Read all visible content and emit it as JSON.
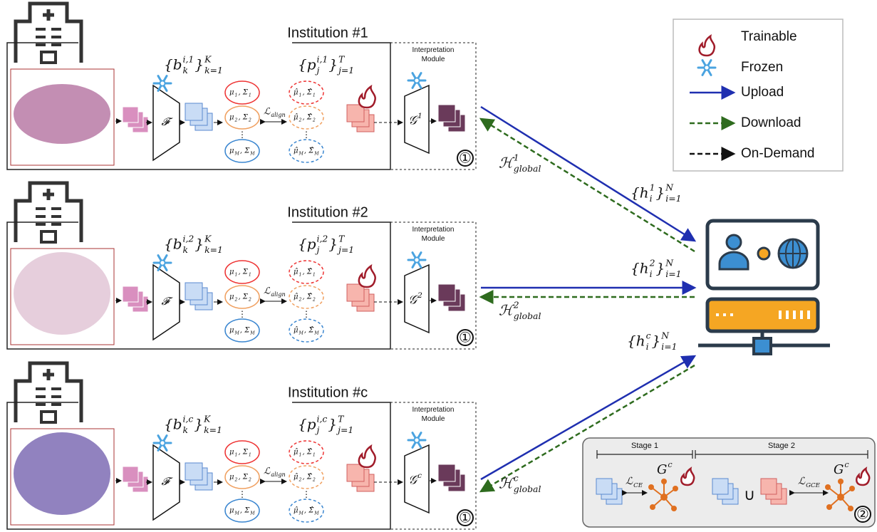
{
  "legend": {
    "items": [
      "Trainable",
      "Frozen",
      "Upload",
      "Download",
      "On-Demand"
    ]
  },
  "module": "Interpretation Module",
  "encoder": "𝓕",
  "align": {
    "main": "ℒ",
    "sub": "align"
  },
  "vdots": "⋮",
  "badge": "①",
  "gaussians": [
    {
      "main": "μ",
      "sub": "1",
      "tail": ", Σ",
      "sub2": "1"
    },
    {
      "main": "μ",
      "sub": "2",
      "tail": ", Σ",
      "sub2": "2"
    },
    {
      "main": "μ",
      "sub": "M",
      "tail": ", Σ",
      "sub2": "M"
    }
  ],
  "gaussians_hat": [
    {
      "main": "μ̂",
      "sub": "1",
      "tail": ", Σ̂",
      "sub2": "1"
    },
    {
      "main": "μ̂",
      "sub": "2",
      "tail": ", Σ̂",
      "sub2": "2"
    },
    {
      "main": "μ̂",
      "sub": "M",
      "tail": ", Σ̂",
      "sub2": "M"
    }
  ],
  "institutions": [
    {
      "title": "Institution #1",
      "interpreter": {
        "main": "𝒢",
        "sup": "1"
      },
      "tokens": {
        "main": "{b",
        "sup": "i,1",
        "sub": "k",
        "tail": "}",
        "sup2": "K",
        "sub2": "k=1"
      },
      "prototypes": {
        "main": "{p",
        "sup": "i,1",
        "sub": "j",
        "tail": "}",
        "sup2": "T",
        "sub2": "j=1"
      },
      "upload": {
        "main": "{h",
        "sup": "1",
        "sub": "i",
        "tail": "}",
        "sup2": "N",
        "sub2": "i=1"
      },
      "download": {
        "main": "ℋ",
        "sup": "1",
        "sub": "global"
      }
    },
    {
      "title": "Institution #2",
      "interpreter": {
        "main": "𝒢",
        "sup": "2"
      },
      "tokens": {
        "main": "{b",
        "sup": "i,2",
        "sub": "k",
        "tail": "}",
        "sup2": "K",
        "sub2": "k=1"
      },
      "prototypes": {
        "main": "{p",
        "sup": "i,2",
        "sub": "j",
        "tail": "}",
        "sup2": "T",
        "sub2": "j=1"
      },
      "upload": {
        "main": "{h",
        "sup": "2",
        "sub": "i",
        "tail": "}",
        "sup2": "N",
        "sub2": "i=1"
      },
      "download": {
        "main": "ℋ",
        "sup": "2",
        "sub": "global"
      }
    },
    {
      "title": "Institution #c",
      "interpreter": {
        "main": "𝒢",
        "sup": "c"
      },
      "tokens": {
        "main": "{b",
        "sup": "i,c",
        "sub": "k",
        "tail": "}",
        "sup2": "K",
        "sub2": "k=1"
      },
      "prototypes": {
        "main": "{p",
        "sup": "i,c",
        "sub": "j",
        "tail": "}",
        "sup2": "T",
        "sub2": "j=1"
      },
      "upload": {
        "main": "{h",
        "sup": "c",
        "sub": "i",
        "tail": "}",
        "sup2": "N",
        "sub2": "i=1"
      },
      "download": {
        "main": "ℋ",
        "sup": "c",
        "sub": "global"
      }
    }
  ],
  "stages": {
    "stage1": "Stage 1",
    "stage2": "Stage 2",
    "loss1": {
      "main": "ℒ",
      "sub": "CE"
    },
    "graph": {
      "main": "G",
      "sup": "c"
    },
    "union": "∪",
    "loss2": {
      "main": "ℒ",
      "sub": "GCE"
    },
    "badge": "②"
  }
}
